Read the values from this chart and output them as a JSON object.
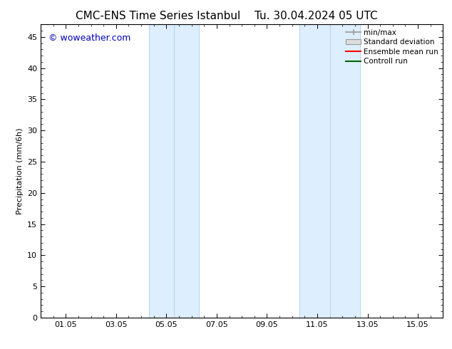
{
  "title": "CMC-ENS Time Series Istanbul",
  "title2": "Tu. 30.04.2024 05 UTC",
  "ylabel": "Precipitation (mm/6h)",
  "watermark": "© woweather.com",
  "watermark_color": "#0000bb",
  "background_color": "#ffffff",
  "plot_bg_color": "#ffffff",
  "ylim": [
    0,
    47
  ],
  "yticks": [
    0,
    5,
    10,
    15,
    20,
    25,
    30,
    35,
    40,
    45
  ],
  "xtick_labels": [
    "01.05",
    "03.05",
    "05.05",
    "07.05",
    "09.05",
    "11.05",
    "13.05",
    "15.05"
  ],
  "xtick_positions": [
    1,
    3,
    5,
    7,
    9,
    11,
    13,
    15
  ],
  "xlim": [
    0.0,
    16.0
  ],
  "shaded_bands": [
    {
      "xmin": 4.3,
      "xmax": 6.3
    },
    {
      "xmin": 10.3,
      "xmax": 12.7
    }
  ],
  "band_color": "#ddeeff",
  "band_edge_color": "#b0ccee",
  "legend_labels": [
    "min/max",
    "Standard deviation",
    "Ensemble mean run",
    "Controll run"
  ],
  "legend_line_color": "#999999",
  "legend_box_color": "#dddddd",
  "legend_red": "#ff0000",
  "legend_green": "#006600",
  "title_fontsize": 11,
  "tick_fontsize": 8,
  "ylabel_fontsize": 8,
  "watermark_fontsize": 9,
  "legend_fontsize": 7.5
}
